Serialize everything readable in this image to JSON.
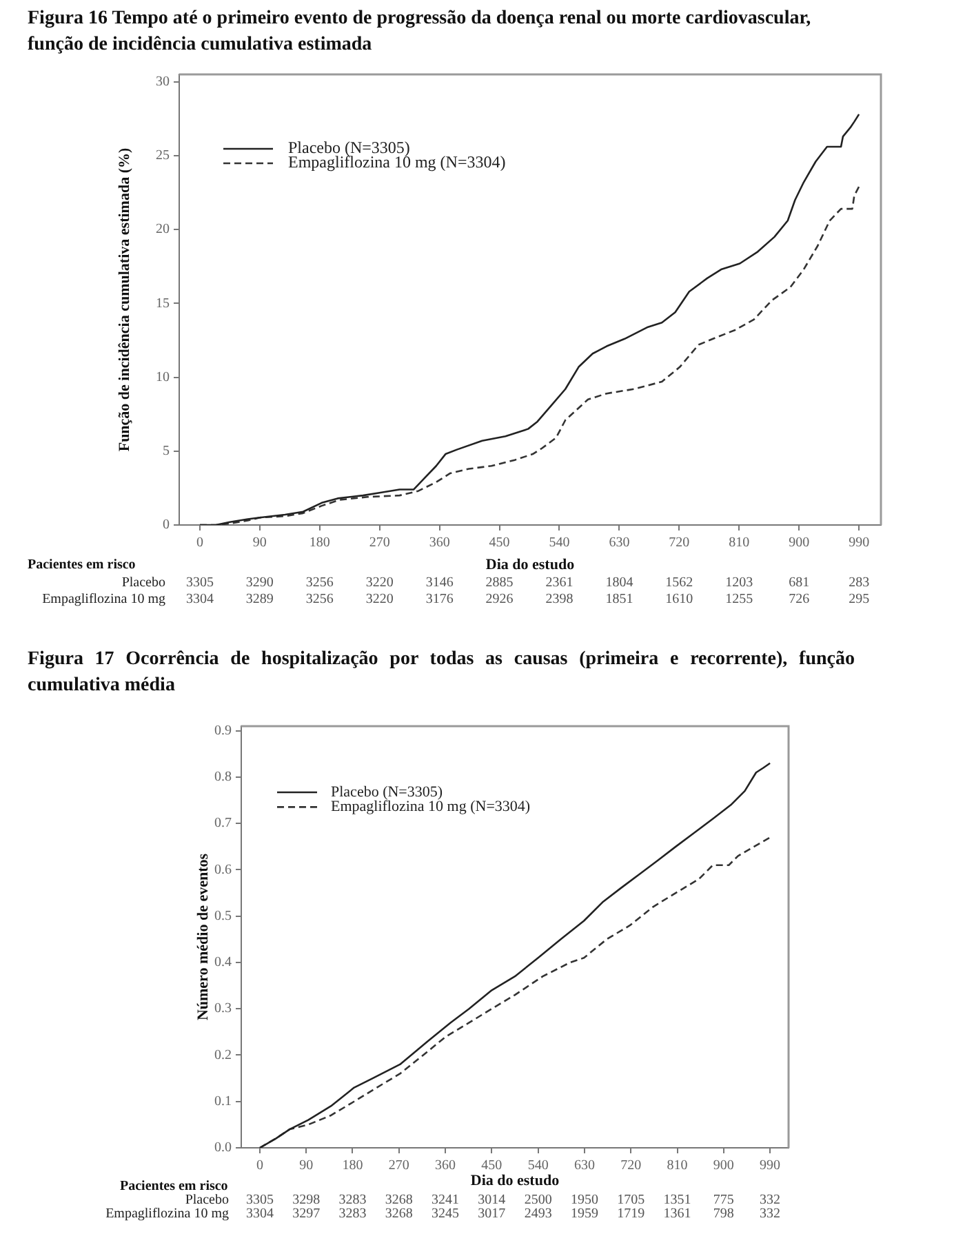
{
  "chart_data": [
    {
      "type": "line",
      "title": "Figura 16 Tempo até o primeiro evento de progressão da doença renal ou morte cardiovascular, função de incidência cumulativa estimada",
      "xlabel": "Dia do estudo",
      "ylabel": "Função de incidência cumulativa estimada (%)",
      "xlim": [
        -31,
        1023
      ],
      "xticks": [
        0,
        90,
        180,
        270,
        360,
        450,
        540,
        630,
        720,
        810,
        900,
        990
      ],
      "ylim": [
        0,
        30.5
      ],
      "yticks": [
        0,
        5,
        10,
        15,
        20,
        25,
        30
      ],
      "legend": "top left",
      "series": [
        {
          "name": "Placebo (N=3305)",
          "color": "#222222",
          "line_style": "solid",
          "x": [
            0,
            24,
            45,
            72,
            90,
            128,
            155,
            183,
            207,
            245,
            273,
            300,
            321,
            338,
            355,
            369,
            386,
            424,
            459,
            493,
            507,
            528,
            549,
            569,
            590,
            611,
            638,
            673,
            694,
            714,
            735,
            762,
            783,
            811,
            838,
            863,
            883,
            894,
            907,
            925,
            942,
            963,
            966,
            977,
            983,
            990
          ],
          "values": [
            0,
            0,
            0.2,
            0.4,
            0.5,
            0.7,
            0.9,
            1.5,
            1.8,
            2.0,
            2.2,
            2.4,
            2.4,
            3.2,
            4.0,
            4.8,
            5.1,
            5.7,
            6.0,
            6.5,
            7.0,
            8.1,
            9.2,
            10.7,
            11.6,
            12.1,
            12.6,
            13.4,
            13.7,
            14.4,
            15.8,
            16.7,
            17.3,
            17.7,
            18.5,
            19.5,
            20.6,
            22.0,
            23.2,
            24.6,
            25.6,
            25.6,
            26.3,
            26.9,
            27.3,
            27.8
          ]
        },
        {
          "name": "Empagliflozina 10 mg (N=3304)",
          "color": "#333333",
          "line_style": "dashed",
          "x": [
            0,
            24,
            45,
            72,
            90,
            128,
            155,
            183,
            210,
            252,
            300,
            328,
            355,
            376,
            404,
            438,
            473,
            500,
            514,
            535,
            549,
            583,
            611,
            652,
            694,
            721,
            749,
            776,
            804,
            832,
            859,
            887,
            907,
            928,
            946,
            963,
            980,
            983,
            990
          ],
          "values": [
            0,
            0,
            0.1,
            0.3,
            0.5,
            0.6,
            0.8,
            1.3,
            1.7,
            1.9,
            2.0,
            2.3,
            2.9,
            3.5,
            3.8,
            4.0,
            4.4,
            4.8,
            5.2,
            5.9,
            7.1,
            8.5,
            8.9,
            9.2,
            9.7,
            10.7,
            12.2,
            12.7,
            13.2,
            13.9,
            15.2,
            16.1,
            17.3,
            18.9,
            20.6,
            21.4,
            21.4,
            22.3,
            22.9
          ]
        }
      ],
      "annotations": [
        "Pacientes em risco",
        "Placebo",
        "3305",
        "3290",
        "3256",
        "3220",
        "3146",
        "2885",
        "2361",
        "1804",
        "1562",
        "1203",
        "681",
        "283",
        "Empagliflozina 10 mg",
        "3304",
        "3289",
        "3256",
        "3220",
        "3176",
        "2926",
        "2398",
        "1851",
        "1610",
        "1255",
        "726",
        "295"
      ]
    },
    {
      "type": "line",
      "title": "Figura 17 Ocorrência de hospitalização por todas as causas (primeira e recorrente), função cumulativa média",
      "xlabel": "Dia do estudo",
      "ylabel": "Número médio de eventos",
      "xlim": [
        -36,
        1026
      ],
      "xticks": [
        0,
        90,
        180,
        270,
        360,
        450,
        540,
        630,
        720,
        810,
        900,
        990
      ],
      "ylim": [
        0,
        0.91
      ],
      "yticks": [
        {
          "value": 0,
          "label": "0.0"
        },
        0.1,
        0.2,
        0.3,
        0.4,
        0.5,
        0.6,
        0.7,
        0.8,
        0.9
      ],
      "legend": "top left",
      "series": [
        {
          "name": "Placebo (N=3305)",
          "color": "#222222",
          "line_style": "solid",
          "x": [
            0,
            31,
            58,
            94,
            138,
            183,
            219,
            272,
            326,
            370,
            406,
            450,
            495,
            540,
            584,
            629,
            665,
            700,
            736,
            772,
            807,
            843,
            879,
            914,
            941,
            963,
            977,
            990
          ],
          "values": [
            0,
            0.02,
            0.04,
            0.06,
            0.09,
            0.13,
            0.15,
            0.18,
            0.23,
            0.27,
            0.3,
            0.34,
            0.37,
            0.41,
            0.45,
            0.49,
            0.53,
            0.56,
            0.59,
            0.62,
            0.65,
            0.68,
            0.71,
            0.74,
            0.77,
            0.81,
            0.82,
            0.83
          ]
        },
        {
          "name": "Empagliflozina 10 mg (N=3304)",
          "color": "#333333",
          "line_style": "dashed",
          "x": [
            0,
            31,
            58,
            94,
            138,
            183,
            227,
            272,
            317,
            361,
            406,
            450,
            495,
            549,
            602,
            629,
            673,
            718,
            763,
            807,
            852,
            879,
            910,
            928,
            959,
            990
          ],
          "values": [
            0,
            0.02,
            0.04,
            0.05,
            0.07,
            0.1,
            0.13,
            0.16,
            0.2,
            0.24,
            0.27,
            0.3,
            0.33,
            0.37,
            0.4,
            0.41,
            0.45,
            0.48,
            0.52,
            0.55,
            0.58,
            0.61,
            0.61,
            0.63,
            0.65,
            0.67
          ]
        }
      ],
      "annotations": [
        "Pacientes em risco",
        "Placebo",
        "3305",
        "3298",
        "3283",
        "3268",
        "3241",
        "3014",
        "2500",
        "1950",
        "1705",
        "1351",
        "775",
        "332",
        "Empagliflozina 10 mg",
        "3304",
        "3297",
        "3283",
        "3268",
        "3245",
        "3017",
        "2493",
        "1959",
        "1719",
        "1361",
        "798",
        "332"
      ]
    }
  ]
}
